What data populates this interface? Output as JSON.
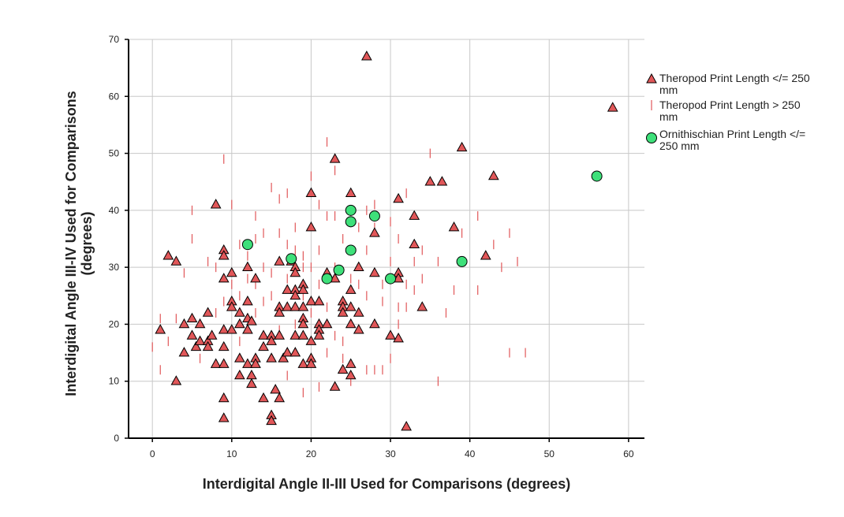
{
  "chart_data": {
    "type": "scatter",
    "title": "",
    "xlabel": "Interdigital Angle II-III Used for Comparisons (degrees)",
    "ylabel_lines": [
      "Interdigital Angle III-IV Used for Comparisons",
      "(degrees)"
    ],
    "xlim": [
      -3,
      62
    ],
    "ylim": [
      0,
      70
    ],
    "x_ticks": [
      0,
      10,
      20,
      30,
      40,
      50,
      60
    ],
    "y_ticks": [
      0,
      10,
      20,
      30,
      40,
      50,
      60,
      70
    ],
    "grid": true,
    "legend_position": "right",
    "series": [
      {
        "name_lines": [
          "Theropod Print Length </= 250",
          "mm"
        ],
        "marker": "triangle",
        "color": "#e15759",
        "points": [
          [
            1,
            19
          ],
          [
            2,
            32
          ],
          [
            3,
            31
          ],
          [
            3,
            10
          ],
          [
            4,
            20
          ],
          [
            4,
            15
          ],
          [
            5,
            21
          ],
          [
            5,
            18
          ],
          [
            5.5,
            16
          ],
          [
            6,
            20
          ],
          [
            6,
            17
          ],
          [
            7,
            22
          ],
          [
            7,
            17
          ],
          [
            7,
            16
          ],
          [
            7.5,
            18
          ],
          [
            8,
            41
          ],
          [
            8,
            13
          ],
          [
            9,
            33
          ],
          [
            9,
            32
          ],
          [
            9,
            28
          ],
          [
            9,
            19
          ],
          [
            9,
            16
          ],
          [
            9,
            13
          ],
          [
            9,
            7
          ],
          [
            9,
            3.5
          ],
          [
            10,
            29
          ],
          [
            10,
            24
          ],
          [
            10,
            23
          ],
          [
            10,
            19
          ],
          [
            11,
            22
          ],
          [
            11,
            20
          ],
          [
            11,
            14
          ],
          [
            11,
            11
          ],
          [
            12,
            30
          ],
          [
            12,
            24
          ],
          [
            12,
            21
          ],
          [
            12,
            19
          ],
          [
            12,
            13
          ],
          [
            12.5,
            20.5
          ],
          [
            12.5,
            11
          ],
          [
            12.5,
            9.5
          ],
          [
            13,
            28
          ],
          [
            13,
            14
          ],
          [
            13,
            13
          ],
          [
            14,
            18
          ],
          [
            14,
            16
          ],
          [
            14,
            7
          ],
          [
            15,
            18
          ],
          [
            15,
            17
          ],
          [
            15,
            14
          ],
          [
            15,
            4
          ],
          [
            15,
            3
          ],
          [
            15.5,
            8.5
          ],
          [
            16,
            31
          ],
          [
            16,
            23
          ],
          [
            16,
            22
          ],
          [
            16,
            18
          ],
          [
            16,
            7
          ],
          [
            16.5,
            14
          ],
          [
            17,
            26
          ],
          [
            17,
            23
          ],
          [
            17,
            15
          ],
          [
            17.5,
            31
          ],
          [
            18,
            30
          ],
          [
            18,
            29
          ],
          [
            18,
            26
          ],
          [
            18,
            25
          ],
          [
            18,
            23
          ],
          [
            18,
            18
          ],
          [
            18,
            15
          ],
          [
            19,
            27
          ],
          [
            19,
            26
          ],
          [
            19,
            23
          ],
          [
            19,
            21
          ],
          [
            19,
            20
          ],
          [
            19,
            18
          ],
          [
            19,
            13
          ],
          [
            20,
            43
          ],
          [
            20,
            37
          ],
          [
            20,
            24
          ],
          [
            20,
            17
          ],
          [
            20,
            14
          ],
          [
            20,
            13
          ],
          [
            21,
            24
          ],
          [
            21,
            20
          ],
          [
            21,
            19
          ],
          [
            21,
            18
          ],
          [
            22,
            29
          ],
          [
            22,
            20
          ],
          [
            23,
            49
          ],
          [
            23,
            28
          ],
          [
            23,
            9
          ],
          [
            24,
            24
          ],
          [
            24,
            23
          ],
          [
            24,
            22
          ],
          [
            24,
            12
          ],
          [
            25,
            43
          ],
          [
            25,
            26
          ],
          [
            25,
            23
          ],
          [
            25,
            20
          ],
          [
            25,
            13
          ],
          [
            25,
            11
          ],
          [
            26,
            30
          ],
          [
            26,
            22
          ],
          [
            26,
            19
          ],
          [
            27,
            67
          ],
          [
            28,
            36
          ],
          [
            28,
            29
          ],
          [
            28,
            20
          ],
          [
            30,
            18
          ],
          [
            31,
            42
          ],
          [
            31,
            29
          ],
          [
            31,
            28
          ],
          [
            31,
            17.5
          ],
          [
            32,
            2
          ],
          [
            33,
            39
          ],
          [
            33,
            34
          ],
          [
            34,
            23
          ],
          [
            35,
            45
          ],
          [
            36.5,
            45
          ],
          [
            38,
            37
          ],
          [
            39,
            51
          ],
          [
            42,
            32
          ],
          [
            43,
            46
          ],
          [
            58,
            58
          ]
        ]
      },
      {
        "name_lines": [
          "Theropod Print Length > 250",
          "mm"
        ],
        "marker": "dash",
        "color": "#e15759",
        "points": [
          [
            0,
            16
          ],
          [
            1,
            12
          ],
          [
            1,
            21
          ],
          [
            4,
            29
          ],
          [
            5,
            40
          ],
          [
            8,
            30
          ],
          [
            9,
            49
          ],
          [
            10,
            41
          ],
          [
            11,
            34
          ],
          [
            13,
            39
          ],
          [
            14,
            36
          ],
          [
            15,
            44
          ],
          [
            16,
            42
          ],
          [
            17,
            43
          ],
          [
            18,
            37
          ],
          [
            19,
            32
          ],
          [
            20,
            46
          ],
          [
            21,
            41
          ],
          [
            22,
            52
          ],
          [
            22,
            39
          ],
          [
            23,
            47
          ],
          [
            24,
            35
          ],
          [
            25,
            33
          ],
          [
            26,
            27
          ],
          [
            27,
            40
          ],
          [
            28,
            37
          ],
          [
            29,
            24
          ],
          [
            30,
            31
          ],
          [
            31,
            35
          ],
          [
            32,
            23
          ],
          [
            33,
            31
          ],
          [
            34,
            28
          ],
          [
            35,
            50
          ],
          [
            36,
            31
          ],
          [
            37,
            22
          ],
          [
            38,
            26
          ],
          [
            39,
            36
          ],
          [
            41,
            26
          ],
          [
            41,
            39
          ],
          [
            43,
            34
          ],
          [
            44,
            30
          ],
          [
            45,
            36
          ],
          [
            45,
            15
          ],
          [
            46,
            31
          ],
          [
            47,
            15
          ],
          [
            36,
            10
          ],
          [
            11,
            25
          ],
          [
            12,
            32
          ],
          [
            13,
            27
          ],
          [
            14,
            24
          ],
          [
            15,
            29
          ],
          [
            16,
            19
          ],
          [
            17,
            34
          ],
          [
            18,
            20
          ],
          [
            19,
            25
          ],
          [
            20,
            22
          ],
          [
            21,
            27
          ],
          [
            22,
            23
          ],
          [
            23,
            18
          ],
          [
            24,
            14
          ],
          [
            27,
            12
          ],
          [
            28,
            12
          ],
          [
            29,
            12
          ],
          [
            30,
            14
          ],
          [
            31,
            20
          ],
          [
            32,
            27
          ],
          [
            33,
            26
          ],
          [
            24,
            17
          ],
          [
            22,
            15
          ],
          [
            20,
            30
          ],
          [
            18,
            33
          ],
          [
            16,
            36
          ],
          [
            14,
            30
          ],
          [
            12,
            28
          ],
          [
            10,
            27
          ],
          [
            8,
            22
          ],
          [
            6,
            14
          ],
          [
            3,
            21
          ],
          [
            2,
            17
          ],
          [
            5,
            35
          ],
          [
            7,
            31
          ],
          [
            9,
            24
          ],
          [
            11,
            17
          ],
          [
            13,
            22
          ],
          [
            15,
            25
          ],
          [
            17,
            28
          ],
          [
            19,
            30
          ],
          [
            21,
            33
          ],
          [
            23,
            30
          ],
          [
            25,
            28
          ],
          [
            27,
            25
          ],
          [
            29,
            27
          ],
          [
            34,
            33
          ],
          [
            26,
            37
          ],
          [
            28,
            41
          ],
          [
            30,
            38
          ],
          [
            32,
            43
          ],
          [
            21,
            9
          ],
          [
            17,
            11
          ],
          [
            25,
            10
          ],
          [
            19,
            8
          ],
          [
            13,
            35
          ],
          [
            23,
            39
          ],
          [
            27,
            33
          ],
          [
            31,
            23
          ]
        ]
      },
      {
        "name_lines": [
          "Ornithischian Print Length </=",
          "250 mm"
        ],
        "marker": "circle",
        "color": "#3ee07a",
        "points": [
          [
            12,
            34
          ],
          [
            17.5,
            31.5
          ],
          [
            22,
            28
          ],
          [
            23.5,
            29.5
          ],
          [
            25,
            40
          ],
          [
            25,
            38
          ],
          [
            25,
            33
          ],
          [
            28,
            39
          ],
          [
            30,
            28
          ],
          [
            39,
            31
          ],
          [
            56,
            46
          ]
        ]
      }
    ]
  }
}
